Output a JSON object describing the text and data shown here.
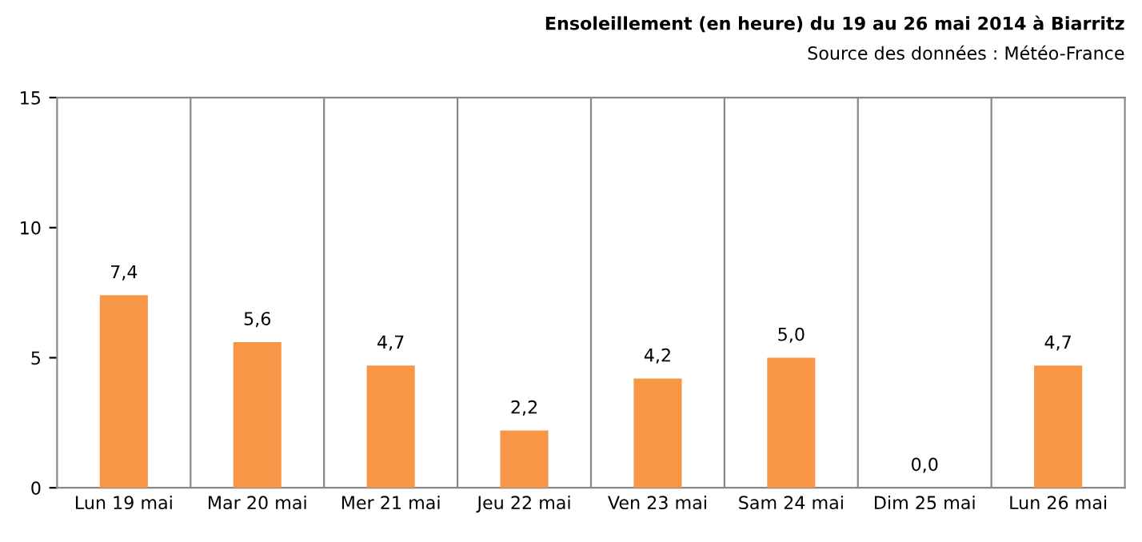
{
  "chart_data": {
    "type": "bar",
    "title": "Ensoleillement (en heure) du 19 au 26 mai 2014 à Biarritz",
    "annotations": [
      "Source des données : Météo-France"
    ],
    "categories": [
      "Lun 19 mai",
      "Mar 20 mai",
      "Mer 21 mai",
      "Jeu 22 mai",
      "Ven 23 mai",
      "Sam 24 mai",
      "Dim 25 mai",
      "Lun 26 mai"
    ],
    "values": [
      7.4,
      5.6,
      4.7,
      2.2,
      4.2,
      5.0,
      0.0,
      4.7
    ],
    "value_labels": [
      "7,4",
      "5,6",
      "4,7",
      "2,2",
      "4,2",
      "5,0",
      "0,0",
      "4,7"
    ],
    "color": "#f79646",
    "ylim": [
      0,
      15
    ],
    "yticks": [
      0,
      5,
      10,
      15
    ],
    "grid": "x",
    "legend": false
  }
}
